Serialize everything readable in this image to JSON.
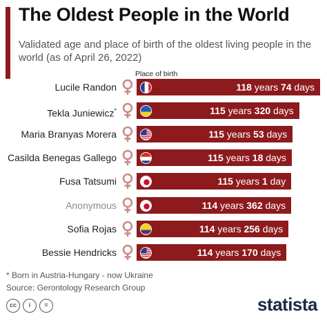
{
  "header": {
    "title": "The Oldest People in the World",
    "subtitle": "Validated age and place of birth of the oldest living people in the world (as of April 26, 2022)",
    "place_of_birth_label": "Place of birth"
  },
  "colors": {
    "accent": "#8d1a1d",
    "bar": "#8d1a1d",
    "venus": "#c98a8a"
  },
  "chart_data": {
    "type": "bar",
    "title": "The Oldest People in the World",
    "orientation": "horizontal",
    "categories": [
      "Lucile Randon",
      "Tekla Juniewicz",
      "Maria Branyas Morera",
      "Casilda Benegas Gallego",
      "Fusa Tatsumi",
      "Anonymous",
      "Sofia Rojas",
      "Bessie Hendricks"
    ],
    "rows": [
      {
        "name": "Lucile Randon",
        "years": 118,
        "days": 74,
        "flag": "france",
        "muted": false,
        "asterisk": false
      },
      {
        "name": "Tekla Juniewicz",
        "years": 115,
        "days": 320,
        "flag": "ukraine",
        "muted": false,
        "asterisk": true
      },
      {
        "name": "Maria Branyas Morera",
        "years": 115,
        "days": 53,
        "flag": "usa",
        "muted": false,
        "asterisk": false
      },
      {
        "name": "Casilda Benegas Gallego",
        "years": 115,
        "days": 18,
        "flag": "paraguay",
        "muted": false,
        "asterisk": false
      },
      {
        "name": "Fusa Tatsumi",
        "years": 115,
        "days": 1,
        "flag": "japan",
        "muted": false,
        "asterisk": false
      },
      {
        "name": "Anonymous",
        "years": 114,
        "days": 362,
        "flag": "japan",
        "muted": true,
        "asterisk": false
      },
      {
        "name": "Sofia Rojas",
        "years": 114,
        "days": 256,
        "flag": "colombia",
        "muted": false,
        "asterisk": false
      },
      {
        "name": "Bessie Hendricks",
        "years": 114,
        "days": 170,
        "flag": "usa",
        "muted": false,
        "asterisk": false
      }
    ],
    "years_unit": "years",
    "days_unit": "days",
    "day_unit_singular": "day",
    "asterisk_marker": "*"
  },
  "footer": {
    "note": "* Born in Austria-Hungary - now Ukraine",
    "source": "Source: Gerontology Research Group",
    "license_icons": [
      "cc-icon",
      "attribution-icon",
      "no-derivatives-icon"
    ],
    "license_glyphs": [
      "cc",
      "i",
      "="
    ],
    "brand": "statista"
  }
}
